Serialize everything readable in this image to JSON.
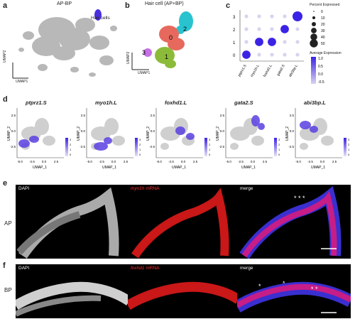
{
  "panels": {
    "a": {
      "letter": "a",
      "title": "AP-BP",
      "annotation": "Hair cells",
      "x_axis": "UMAP1",
      "y_axis": "UMAP2"
    },
    "b": {
      "letter": "b",
      "title": "Hair cell (AP+BP)",
      "clusters": [
        "0",
        "1",
        "2",
        "3"
      ],
      "x_axis": "UMAP1",
      "y_axis": "UMAP2"
    },
    "c": {
      "letter": "c",
      "legend_size_title": "Percent Expressed",
      "legend_size_values": [
        "0",
        "10",
        "20",
        "30",
        "40",
        "50"
      ],
      "legend_color_title": "Average Expression",
      "legend_color_values": [
        "1.0",
        "0.5",
        "0.0",
        "-0.5"
      ]
    },
    "d": {
      "letter": "d",
      "genes": [
        {
          "name": "ptprz1.S",
          "ylabel": "UMAP_2",
          "xlabel": "UMAP_1",
          "xticks": [
            "-5.0",
            "-2.5",
            "0.0",
            "2.5"
          ],
          "yticks": [
            "2.5",
            "0.0",
            "-2.5"
          ],
          "scale": [
            "3",
            "2",
            "1",
            "0"
          ]
        },
        {
          "name": "myo1h.L",
          "ylabel": "UMAP_2",
          "xlabel": "UMAP_1",
          "xticks": [
            "-5.0",
            "-2.5",
            "0.0",
            "2.5"
          ],
          "yticks": [
            "2.5",
            "0.0",
            "-2.5"
          ],
          "scale": [
            "3",
            "2",
            "1",
            "0"
          ]
        },
        {
          "name": "foxhd1.L",
          "ylabel": "UMAP_2",
          "xlabel": "UMAP_1",
          "xticks": [
            "-5.0",
            "-2.5",
            "0.0",
            "2.5"
          ],
          "yticks": [
            "2.5",
            "0.0",
            "-2.5"
          ],
          "scale": [
            "3",
            "2",
            "1",
            "0"
          ]
        },
        {
          "name": "gata2.S",
          "ylabel": "UMAP_2",
          "xlabel": "UMAP_1",
          "xticks": [
            "-5.0",
            "-2.5",
            "0.0",
            "2.5"
          ],
          "yticks": [
            "2.5",
            "0.0",
            "-2.5"
          ],
          "scale": [
            "3",
            "2",
            "1",
            "0"
          ]
        },
        {
          "name": "abi3bp.L",
          "ylabel": "UMAP_2",
          "xlabel": "UMAP_1",
          "xticks": [
            "-5.0",
            "-2.5",
            "0.0",
            "2.5"
          ],
          "yticks": [
            "2.5",
            "0.0",
            "-2.5"
          ],
          "scale": [
            "3",
            "2",
            "1",
            "0"
          ]
        }
      ]
    },
    "e": {
      "letter": "e",
      "row_label": "AP",
      "images": [
        {
          "label": "DAPI"
        },
        {
          "gene": "myo1h",
          "suffix": "mRNA"
        },
        {
          "label": "merge",
          "annotation": "* * *"
        }
      ]
    },
    "f": {
      "letter": "f",
      "row_label": "BP",
      "images": [
        {
          "label": "DAPI"
        },
        {
          "gene": "foxhd1",
          "suffix": "mRNA"
        },
        {
          "label": "merge",
          "annotation_left": "*",
          "annotation_mid": "*",
          "annotation_right": "* *"
        }
      ]
    }
  },
  "chart_data": {
    "type": "dotplot",
    "categories": [
      "ptprz1.S",
      "myo1h.L",
      "foxhd1.L",
      "gata2.S",
      "abi3bp.L"
    ],
    "clusters": [
      "3",
      "2",
      "1",
      "0"
    ],
    "xtick_labels": [
      "ptprz1.S",
      "myo1h.L",
      "foxhd1.L",
      "gata2.S",
      "abi3bp.L"
    ],
    "ytick_labels": [
      "3",
      "2",
      "1",
      "0"
    ],
    "pct_expressed": [
      [
        10,
        10,
        10,
        10,
        50
      ],
      [
        10,
        10,
        10,
        40,
        10
      ],
      [
        10,
        40,
        40,
        10,
        10
      ],
      [
        40,
        10,
        10,
        10,
        10
      ]
    ],
    "avg_expression": [
      [
        -0.5,
        -0.5,
        -0.5,
        -0.5,
        1.0
      ],
      [
        -0.5,
        -0.5,
        -0.5,
        1.0,
        -0.5
      ],
      [
        -0.5,
        1.0,
        1.0,
        -0.5,
        -0.5
      ],
      [
        1.0,
        -0.5,
        -0.5,
        -0.5,
        -0.5
      ]
    ],
    "colors": {
      "high": "#3b23e6",
      "low": "#d8d3ee"
    }
  }
}
